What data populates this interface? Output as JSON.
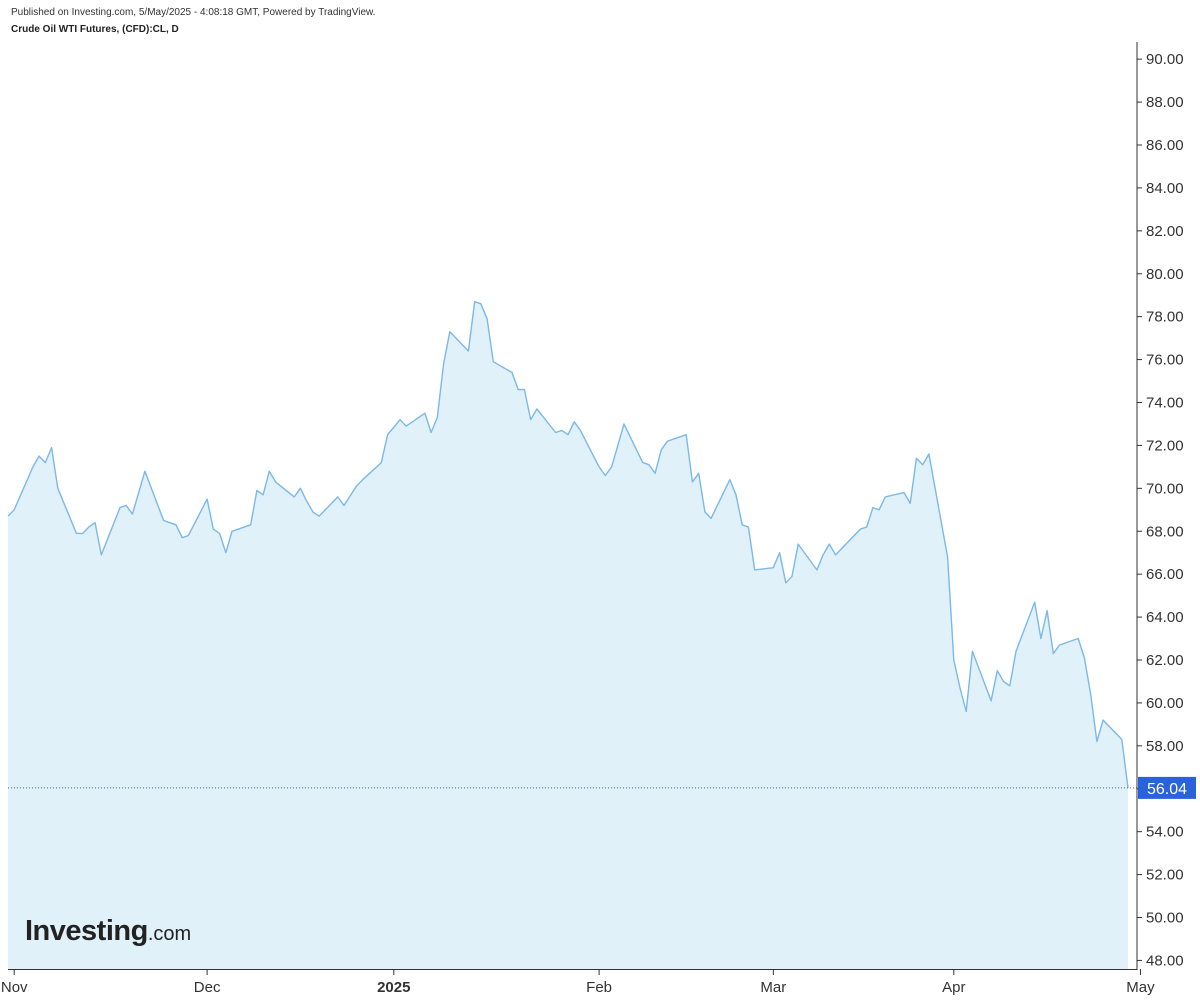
{
  "header": {
    "published": "Published on Investing.com, 5/May/2025 - 4:08:18 GMT, Powered by TradingView.",
    "title": "Crude Oil WTI Futures, (CFD):CL, D"
  },
  "logo": {
    "main": "Investing",
    "suffix": ".com"
  },
  "colors": {
    "line": "#7cb8e8",
    "area": "#e0f1fa",
    "price_badge": "#2962d9",
    "axis": "#333333"
  },
  "chart_data": {
    "type": "area",
    "title": "Crude Oil WTI Futures, (CFD):CL, D",
    "xlabel": "",
    "ylabel": "",
    "ylim": [
      47.6,
      90.8
    ],
    "y_ticks": [
      "48.00",
      "50.00",
      "52.00",
      "54.00",
      "56.00",
      "58.00",
      "60.00",
      "62.00",
      "64.00",
      "66.00",
      "68.00",
      "70.00",
      "72.00",
      "74.00",
      "76.00",
      "78.00",
      "80.00",
      "82.00",
      "84.00",
      "86.00",
      "88.00",
      "90.00"
    ],
    "x_ticks": [
      {
        "label": "Nov",
        "date": "2024-11-01",
        "bold": false
      },
      {
        "label": "Dec",
        "date": "2024-12-02",
        "bold": false
      },
      {
        "label": "2025",
        "date": "2025-01-01",
        "bold": true
      },
      {
        "label": "Feb",
        "date": "2025-02-03",
        "bold": false
      },
      {
        "label": "Mar",
        "date": "2025-03-03",
        "bold": false
      },
      {
        "label": "Apr",
        "date": "2025-04-01",
        "bold": false
      },
      {
        "label": "May",
        "date": "2025-05-01",
        "bold": false
      }
    ],
    "last_price": "56.04",
    "series": [
      {
        "values": [
          [
            "2024-10-31",
            68.7
          ],
          [
            "2024-11-01",
            69.0
          ],
          [
            "2024-11-04",
            71.0
          ],
          [
            "2024-11-05",
            71.5
          ],
          [
            "2024-11-06",
            71.2
          ],
          [
            "2024-11-07",
            71.9
          ],
          [
            "2024-11-08",
            70.0
          ],
          [
            "2024-11-11",
            67.9
          ],
          [
            "2024-11-12",
            67.9
          ],
          [
            "2024-11-13",
            68.2
          ],
          [
            "2024-11-14",
            68.4
          ],
          [
            "2024-11-15",
            66.9
          ],
          [
            "2024-11-18",
            69.1
          ],
          [
            "2024-11-19",
            69.2
          ],
          [
            "2024-11-20",
            68.8
          ],
          [
            "2024-11-21",
            69.8
          ],
          [
            "2024-11-22",
            70.8
          ],
          [
            "2024-11-25",
            68.5
          ],
          [
            "2024-11-26",
            68.4
          ],
          [
            "2024-11-27",
            68.3
          ],
          [
            "2024-11-28",
            67.7
          ],
          [
            "2024-11-29",
            67.8
          ],
          [
            "2024-12-02",
            69.5
          ],
          [
            "2024-12-03",
            68.1
          ],
          [
            "2024-12-04",
            67.9
          ],
          [
            "2024-12-05",
            67.0
          ],
          [
            "2024-12-06",
            68.0
          ],
          [
            "2024-12-09",
            68.3
          ],
          [
            "2024-12-10",
            69.9
          ],
          [
            "2024-12-11",
            69.7
          ],
          [
            "2024-12-12",
            70.8
          ],
          [
            "2024-12-13",
            70.3
          ],
          [
            "2024-12-16",
            69.6
          ],
          [
            "2024-12-17",
            70.0
          ],
          [
            "2024-12-18",
            69.4
          ],
          [
            "2024-12-19",
            68.9
          ],
          [
            "2024-12-20",
            68.7
          ],
          [
            "2024-12-23",
            69.6
          ],
          [
            "2024-12-24",
            69.2
          ],
          [
            "2024-12-26",
            70.1
          ],
          [
            "2024-12-27",
            70.4
          ],
          [
            "2024-12-30",
            71.2
          ],
          [
            "2024-12-31",
            72.5
          ],
          [
            "2025-01-02",
            73.2
          ],
          [
            "2025-01-03",
            72.9
          ],
          [
            "2025-01-06",
            73.5
          ],
          [
            "2025-01-07",
            72.6
          ],
          [
            "2025-01-08",
            73.3
          ],
          [
            "2025-01-09",
            75.8
          ],
          [
            "2025-01-10",
            77.3
          ],
          [
            "2025-01-13",
            76.4
          ],
          [
            "2025-01-14",
            78.7
          ],
          [
            "2025-01-15",
            78.6
          ],
          [
            "2025-01-16",
            77.9
          ],
          [
            "2025-01-17",
            75.9
          ],
          [
            "2025-01-20",
            75.4
          ],
          [
            "2025-01-21",
            74.6
          ],
          [
            "2025-01-22",
            74.6
          ],
          [
            "2025-01-23",
            73.2
          ],
          [
            "2025-01-24",
            73.7
          ],
          [
            "2025-01-27",
            72.6
          ],
          [
            "2025-01-28",
            72.7
          ],
          [
            "2025-01-29",
            72.5
          ],
          [
            "2025-01-30",
            73.1
          ],
          [
            "2025-01-31",
            72.7
          ],
          [
            "2025-02-03",
            71.0
          ],
          [
            "2025-02-04",
            70.6
          ],
          [
            "2025-02-05",
            71.0
          ],
          [
            "2025-02-06",
            72.0
          ],
          [
            "2025-02-07",
            73.0
          ],
          [
            "2025-02-10",
            71.2
          ],
          [
            "2025-02-11",
            71.1
          ],
          [
            "2025-02-12",
            70.7
          ],
          [
            "2025-02-13",
            71.8
          ],
          [
            "2025-02-14",
            72.2
          ],
          [
            "2025-02-17",
            72.5
          ],
          [
            "2025-02-18",
            70.3
          ],
          [
            "2025-02-19",
            70.7
          ],
          [
            "2025-02-20",
            68.9
          ],
          [
            "2025-02-21",
            68.6
          ],
          [
            "2025-02-24",
            70.4
          ],
          [
            "2025-02-25",
            69.7
          ],
          [
            "2025-02-26",
            68.3
          ],
          [
            "2025-02-27",
            68.2
          ],
          [
            "2025-02-28",
            66.2
          ],
          [
            "2025-03-03",
            66.3
          ],
          [
            "2025-03-04",
            67.0
          ],
          [
            "2025-03-05",
            65.6
          ],
          [
            "2025-03-06",
            65.9
          ],
          [
            "2025-03-07",
            67.4
          ],
          [
            "2025-03-10",
            66.2
          ],
          [
            "2025-03-11",
            66.9
          ],
          [
            "2025-03-12",
            67.4
          ],
          [
            "2025-03-13",
            66.9
          ],
          [
            "2025-03-14",
            67.2
          ],
          [
            "2025-03-17",
            68.1
          ],
          [
            "2025-03-18",
            68.2
          ],
          [
            "2025-03-19",
            69.1
          ],
          [
            "2025-03-20",
            69.0
          ],
          [
            "2025-03-21",
            69.6
          ],
          [
            "2025-03-24",
            69.8
          ],
          [
            "2025-03-25",
            69.3
          ],
          [
            "2025-03-26",
            71.4
          ],
          [
            "2025-03-27",
            71.1
          ],
          [
            "2025-03-28",
            71.6
          ],
          [
            "2025-03-31",
            66.8
          ],
          [
            "2025-04-01",
            62.0
          ],
          [
            "2025-04-02",
            60.7
          ],
          [
            "2025-04-03",
            59.6
          ],
          [
            "2025-04-04",
            62.4
          ],
          [
            "2025-04-07",
            60.1
          ],
          [
            "2025-04-08",
            61.5
          ],
          [
            "2025-04-09",
            61.0
          ],
          [
            "2025-04-10",
            60.8
          ],
          [
            "2025-04-11",
            62.4
          ],
          [
            "2025-04-14",
            64.7
          ],
          [
            "2025-04-15",
            63.0
          ],
          [
            "2025-04-16",
            64.3
          ],
          [
            "2025-04-17",
            62.3
          ],
          [
            "2025-04-18",
            62.7
          ],
          [
            "2025-04-21",
            63.0
          ],
          [
            "2025-04-22",
            62.1
          ],
          [
            "2025-04-23",
            60.4
          ],
          [
            "2025-04-24",
            58.2
          ],
          [
            "2025-04-25",
            59.2
          ],
          [
            "2025-04-28",
            58.3
          ],
          [
            "2025-04-29",
            56.04
          ]
        ]
      }
    ]
  }
}
